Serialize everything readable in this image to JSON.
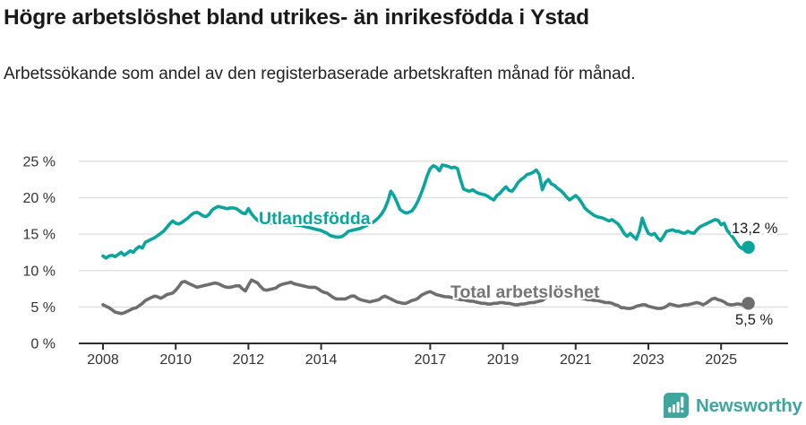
{
  "page": {
    "title": "Högre arbetslöshet bland utrikes- än inrikesfödda i Ystad",
    "subtitle": "Arbetssökande som andel av den registerbaserade arbetskraften månad för månad."
  },
  "branding": {
    "logo_text": "Newsworthy",
    "logo_icon": "bar-chart-speech-bubble-icon",
    "brand_color": "#3ea69d"
  },
  "chart_data": {
    "type": "line",
    "title": "Högre arbetslöshet bland utrikes- än inrikesfödda i Ystad",
    "subtitle": "Arbetssökande som andel av den registerbaserade arbetskraften månad för månad.",
    "x_start": "2008-01",
    "x_end": "2025-10",
    "x_unit": "month",
    "grid": "horizontal",
    "legend_position": "inline-labels",
    "ylim": [
      0,
      26.5
    ],
    "x_tick_years": [
      2008,
      2010,
      2012,
      2014,
      2017,
      2019,
      2021,
      2023,
      2025
    ],
    "y_ticks": [
      {
        "v": 0,
        "label": "0 %"
      },
      {
        "v": 5,
        "label": "5 %"
      },
      {
        "v": 10,
        "label": "10 %"
      },
      {
        "v": 15,
        "label": "15 %"
      },
      {
        "v": 20,
        "label": "20 %"
      },
      {
        "v": 25,
        "label": "25 %"
      }
    ],
    "series": [
      {
        "name": "Utlandsfödda",
        "color": "#0ba59d",
        "end_label": "13,2 %",
        "end_value": 13.2,
        "values": [
          12.0,
          11.7,
          12.0,
          12.1,
          11.9,
          12.2,
          12.5,
          12.1,
          12.4,
          12.7,
          12.5,
          13.0,
          13.3,
          13.1,
          13.9,
          14.1,
          14.3,
          14.5,
          14.8,
          15.1,
          15.4,
          15.9,
          16.4,
          16.8,
          16.5,
          16.4,
          16.6,
          16.9,
          17.2,
          17.6,
          17.9,
          18.0,
          17.8,
          17.5,
          17.4,
          17.7,
          18.3,
          18.6,
          18.8,
          18.7,
          18.6,
          18.5,
          18.6,
          18.6,
          18.5,
          18.2,
          17.9,
          17.8,
          18.5,
          17.8,
          17.3,
          16.9,
          16.7,
          16.6,
          16.5,
          16.6,
          16.5,
          16.4,
          16.4,
          16.5,
          16.6,
          16.5,
          16.4,
          16.3,
          16.2,
          16.2,
          16.1,
          16.0,
          15.9,
          15.8,
          15.7,
          15.6,
          15.5,
          15.3,
          15.1,
          14.8,
          14.7,
          14.6,
          14.6,
          14.7,
          15.0,
          15.4,
          15.5,
          15.6,
          15.7,
          15.8,
          16.0,
          16.2,
          16.4,
          16.6,
          16.9,
          17.3,
          17.8,
          18.5,
          19.5,
          20.9,
          20.3,
          19.4,
          18.4,
          18.1,
          17.9,
          18.0,
          18.2,
          18.8,
          19.6,
          20.6,
          21.7,
          23.0,
          24.0,
          24.4,
          24.2,
          23.7,
          24.5,
          24.4,
          24.3,
          24.1,
          24.2,
          24.0,
          22.5,
          21.2,
          21.0,
          20.9,
          21.1,
          20.8,
          20.6,
          20.5,
          20.4,
          20.2,
          19.9,
          19.7,
          20.3,
          20.6,
          21.1,
          21.5,
          21.0,
          20.9,
          21.4,
          22.1,
          22.5,
          22.8,
          23.2,
          23.3,
          23.5,
          23.8,
          23.2,
          21.1,
          22.1,
          22.5,
          21.9,
          21.7,
          21.3,
          21.0,
          20.6,
          20.1,
          19.7,
          20.0,
          20.3,
          19.9,
          19.3,
          18.6,
          18.2,
          17.9,
          17.6,
          17.4,
          17.3,
          17.2,
          17.0,
          16.8,
          17.0,
          16.7,
          16.4,
          15.8,
          15.1,
          14.7,
          15.1,
          14.7,
          14.3,
          15.4,
          17.2,
          16.0,
          15.1,
          14.9,
          15.1,
          14.5,
          14.1,
          14.7,
          15.4,
          15.5,
          15.6,
          15.4,
          15.4,
          15.2,
          15.1,
          15.4,
          15.2,
          15.1,
          15.6,
          16.0,
          16.2,
          16.4,
          16.6,
          16.8,
          17.0,
          16.9,
          16.3,
          16.5,
          15.5,
          15.0,
          14.5,
          13.9,
          13.3,
          13.0,
          13.0,
          13.2
        ]
      },
      {
        "name": "Total arbetslöshet",
        "color": "#6e6e6e",
        "end_label": "5,5 %",
        "end_value": 5.5,
        "values": [
          5.3,
          5.1,
          4.9,
          4.6,
          4.3,
          4.2,
          4.1,
          4.2,
          4.4,
          4.6,
          4.8,
          4.9,
          5.2,
          5.5,
          5.9,
          6.1,
          6.3,
          6.5,
          6.4,
          6.2,
          6.4,
          6.7,
          6.8,
          6.9,
          7.3,
          7.8,
          8.4,
          8.5,
          8.3,
          8.1,
          7.9,
          7.7,
          7.8,
          7.9,
          8.0,
          8.1,
          8.2,
          8.3,
          8.2,
          8.0,
          7.8,
          7.7,
          7.7,
          7.8,
          7.9,
          7.9,
          7.5,
          7.2,
          8.0,
          8.7,
          8.5,
          8.3,
          7.8,
          7.4,
          7.3,
          7.4,
          7.5,
          7.6,
          7.9,
          8.1,
          8.2,
          8.3,
          8.4,
          8.2,
          8.1,
          8.0,
          7.9,
          7.8,
          7.7,
          7.7,
          7.7,
          7.5,
          7.2,
          7.0,
          6.9,
          6.6,
          6.3,
          6.1,
          6.1,
          6.1,
          6.1,
          6.3,
          6.5,
          6.5,
          6.2,
          6.0,
          5.9,
          5.8,
          5.7,
          5.8,
          5.9,
          6.0,
          6.3,
          6.5,
          6.3,
          6.1,
          5.9,
          5.7,
          5.6,
          5.5,
          5.5,
          5.7,
          5.9,
          6.0,
          6.2,
          6.6,
          6.8,
          7.0,
          7.1,
          6.9,
          6.7,
          6.6,
          6.5,
          6.4,
          6.4,
          6.3,
          6.2,
          6.1,
          6.0,
          6.0,
          5.9,
          5.8,
          5.8,
          5.7,
          5.6,
          5.5,
          5.5,
          5.4,
          5.4,
          5.5,
          5.5,
          5.6,
          5.6,
          5.5,
          5.5,
          5.4,
          5.3,
          5.3,
          5.4,
          5.4,
          5.5,
          5.6,
          5.6,
          5.7,
          5.8,
          5.9,
          6.2,
          6.6,
          6.8,
          6.9,
          6.9,
          6.8,
          6.8,
          6.7,
          6.6,
          6.5,
          6.4,
          6.3,
          6.2,
          6.1,
          6.0,
          6.0,
          5.9,
          5.9,
          5.8,
          5.7,
          5.6,
          5.6,
          5.5,
          5.3,
          5.2,
          4.9,
          4.9,
          4.8,
          4.8,
          4.9,
          5.1,
          5.2,
          5.3,
          5.3,
          5.1,
          5.0,
          4.9,
          4.8,
          4.8,
          4.9,
          5.1,
          5.4,
          5.3,
          5.2,
          5.1,
          5.2,
          5.3,
          5.3,
          5.4,
          5.5,
          5.6,
          5.5,
          5.3,
          5.5,
          5.8,
          6.1,
          6.2,
          6.0,
          5.9,
          5.7,
          5.4,
          5.3,
          5.3,
          5.4,
          5.4,
          5.3,
          5.3,
          5.5
        ]
      }
    ]
  }
}
